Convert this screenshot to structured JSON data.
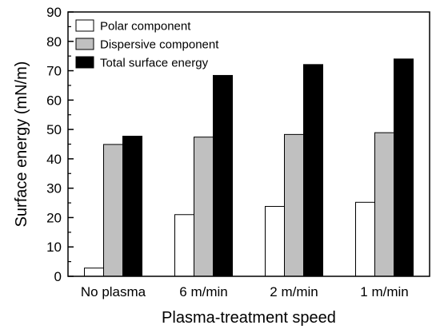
{
  "chart_data": {
    "type": "bar",
    "title": "",
    "xlabel": "Plasma-treatment speed",
    "ylabel": "Surface energy (mN/m)",
    "ylim": [
      0,
      90
    ],
    "yticks": [
      0,
      10,
      20,
      30,
      40,
      50,
      60,
      70,
      80,
      90
    ],
    "categories": [
      "No plasma",
      "6 m/min",
      "2 m/min",
      "1 m/min"
    ],
    "series": [
      {
        "name": "Polar component",
        "color": "#ffffff",
        "values": [
          2.8,
          21.0,
          23.8,
          25.2
        ]
      },
      {
        "name": "Dispersive component",
        "color": "#c0c0c0",
        "values": [
          44.9,
          47.4,
          48.3,
          48.9
        ]
      },
      {
        "name": "Total surface energy",
        "color": "#000000",
        "values": [
          47.7,
          68.4,
          72.1,
          74.0
        ]
      }
    ],
    "legend": "top-left",
    "grid": false
  }
}
